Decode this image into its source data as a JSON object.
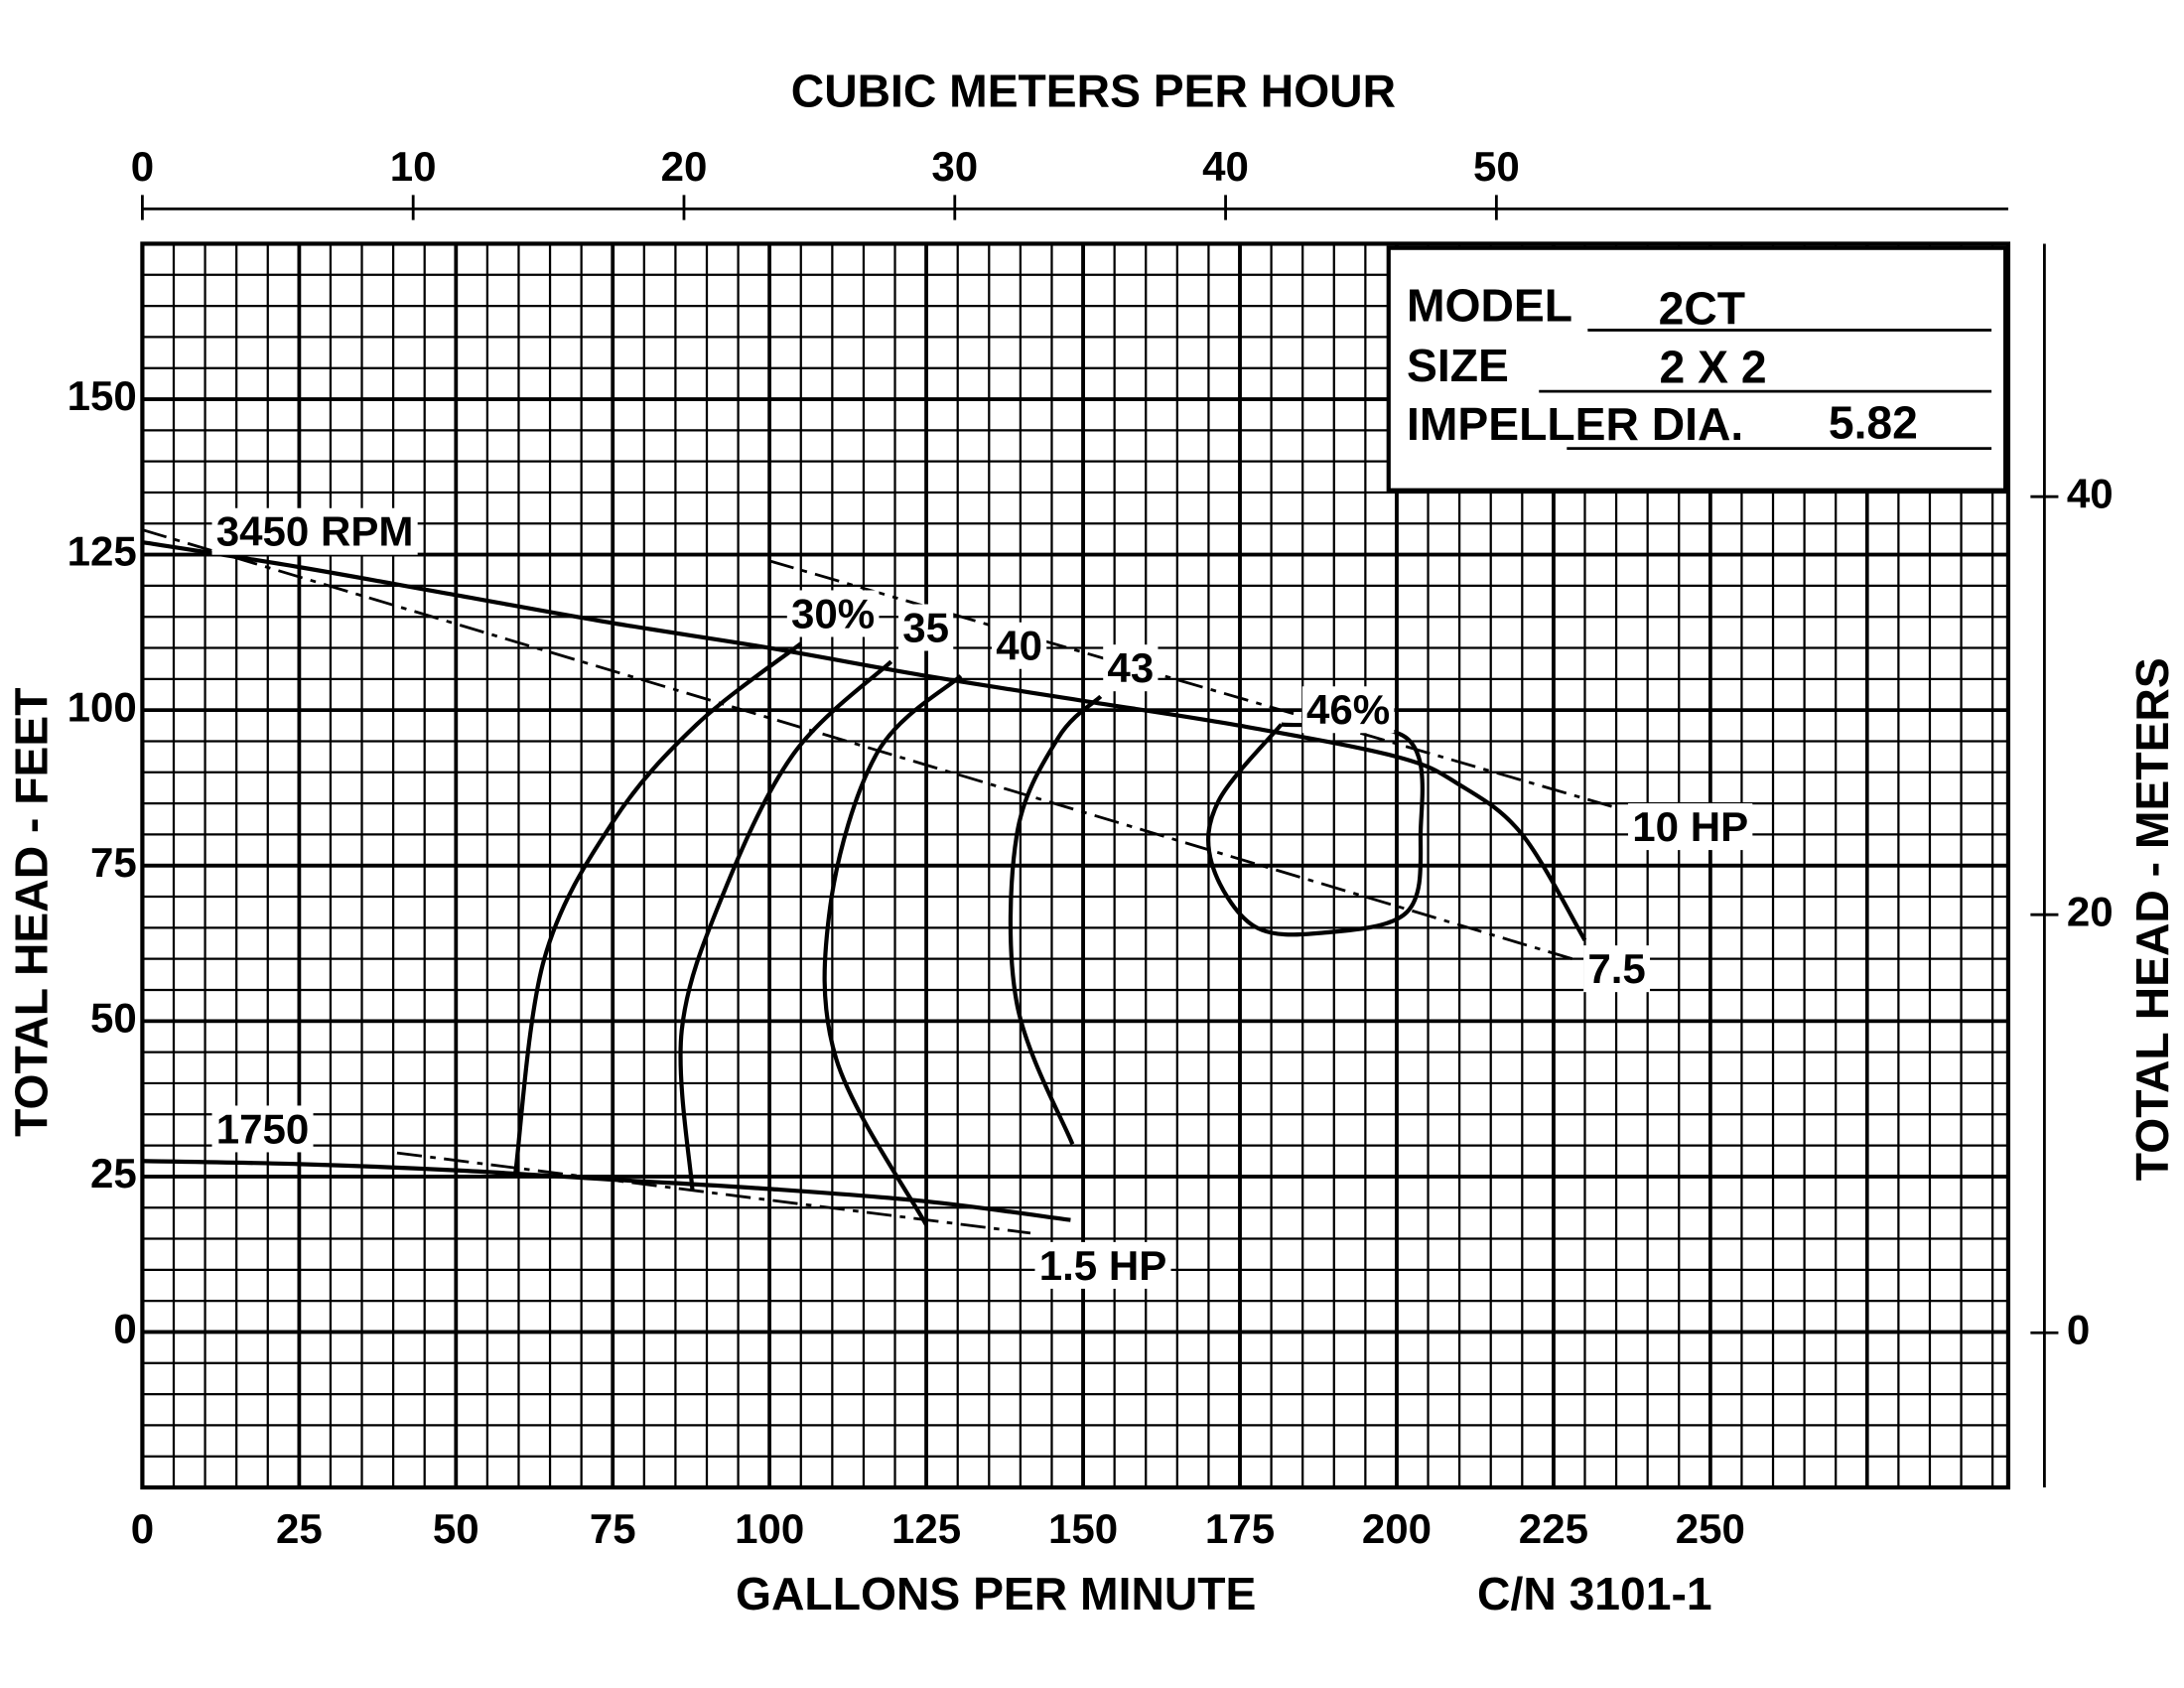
{
  "chart_data": {
    "type": "line",
    "x_label": "GALLONS PER MINUTE",
    "x2_label": "CUBIC METERS PER HOUR",
    "y_label": "TOTAL HEAD - FEET",
    "y2_label": "TOTAL HEAD - METERS",
    "code": "C/N 3101-1",
    "info": [
      {
        "label": "MODEL",
        "value": "2CT"
      },
      {
        "label": "SIZE",
        "value": "2 X 2"
      },
      {
        "label": "IMPELLER DIA.",
        "value": "5.82"
      }
    ],
    "xlim": [
      0,
      297.5
    ],
    "xticks": [
      0,
      25,
      50,
      75,
      100,
      125,
      150,
      175,
      200,
      225,
      250
    ],
    "x2lim": [
      0,
      68.9
    ],
    "x2ticks": [
      0,
      10,
      20,
      30,
      40,
      50
    ],
    "ylim": [
      -25,
      175
    ],
    "yticks": [
      0,
      25,
      50,
      75,
      100,
      125,
      150
    ],
    "y2lim": [
      -7.4,
      52.1
    ],
    "y2ticks": [
      0,
      20,
      40
    ],
    "grid": true,
    "series": [
      {
        "name": "3450 RPM",
        "color": "#000000",
        "dash": false,
        "x": [
          0,
          25,
          50,
          75,
          100,
          125,
          150,
          175,
          200,
          210,
          220,
          230
        ],
        "values": [
          127,
          123,
          118.5,
          114,
          110,
          105.5,
          101.5,
          97.5,
          92.5,
          88,
          80,
          63
        ]
      },
      {
        "name": "1750",
        "color": "#000000",
        "dash": false,
        "x": [
          0,
          25,
          50,
          75,
          100,
          125,
          148
        ],
        "values": [
          27.5,
          27,
          26,
          24.5,
          23,
          21,
          18
        ]
      },
      {
        "name": "30%",
        "color": "#000000",
        "dash": false,
        "x": [
          59.5,
          64,
          75,
          88.4,
          105
        ],
        "values": [
          25.7,
          59.7,
          82,
          97.7,
          110.7
        ]
      },
      {
        "name": "35",
        "color": "#000000",
        "dash": false,
        "x": [
          87.7,
          86,
          92.8,
          104,
          119.4
        ],
        "values": [
          22.8,
          48.5,
          70.9,
          93.2,
          107.8
        ]
      },
      {
        "name": "40",
        "color": "#000000",
        "dash": false,
        "x": [
          125,
          110.6,
          109.7,
          117.2,
          130.5
        ],
        "values": [
          17.2,
          44,
          68.6,
          93.2,
          105.5
        ]
      },
      {
        "name": "43",
        "color": "#000000",
        "dash": false,
        "x": [
          148.3,
          139.4,
          139.4,
          146,
          152.8
        ],
        "values": [
          30.2,
          53,
          79.8,
          95.5,
          102.2
        ]
      },
      {
        "name": "46%",
        "color": "#000000",
        "dash": false,
        "x": [
          181.6,
          171.6,
          170.5,
          177.2,
          188.3,
          201.6,
          203.8,
          201.6,
          181.6
        ],
        "values": [
          97.7,
          85.4,
          75.4,
          65.3,
          64.2,
          67.5,
          79.8,
          95.5,
          97.7
        ]
      },
      {
        "name": "10 HP",
        "color": "#000000",
        "dash": true,
        "x": [
          100,
          235
        ],
        "values": [
          124,
          84.3
        ]
      },
      {
        "name": "7.5",
        "color": "#000000",
        "dash": true,
        "x": [
          0,
          228
        ],
        "values": [
          129,
          60
        ]
      },
      {
        "name": "1.5 HP",
        "color": "#000000",
        "dash": true,
        "x": [
          40.6,
          141.6
        ],
        "values": [
          28.8,
          15.9
        ]
      }
    ]
  }
}
